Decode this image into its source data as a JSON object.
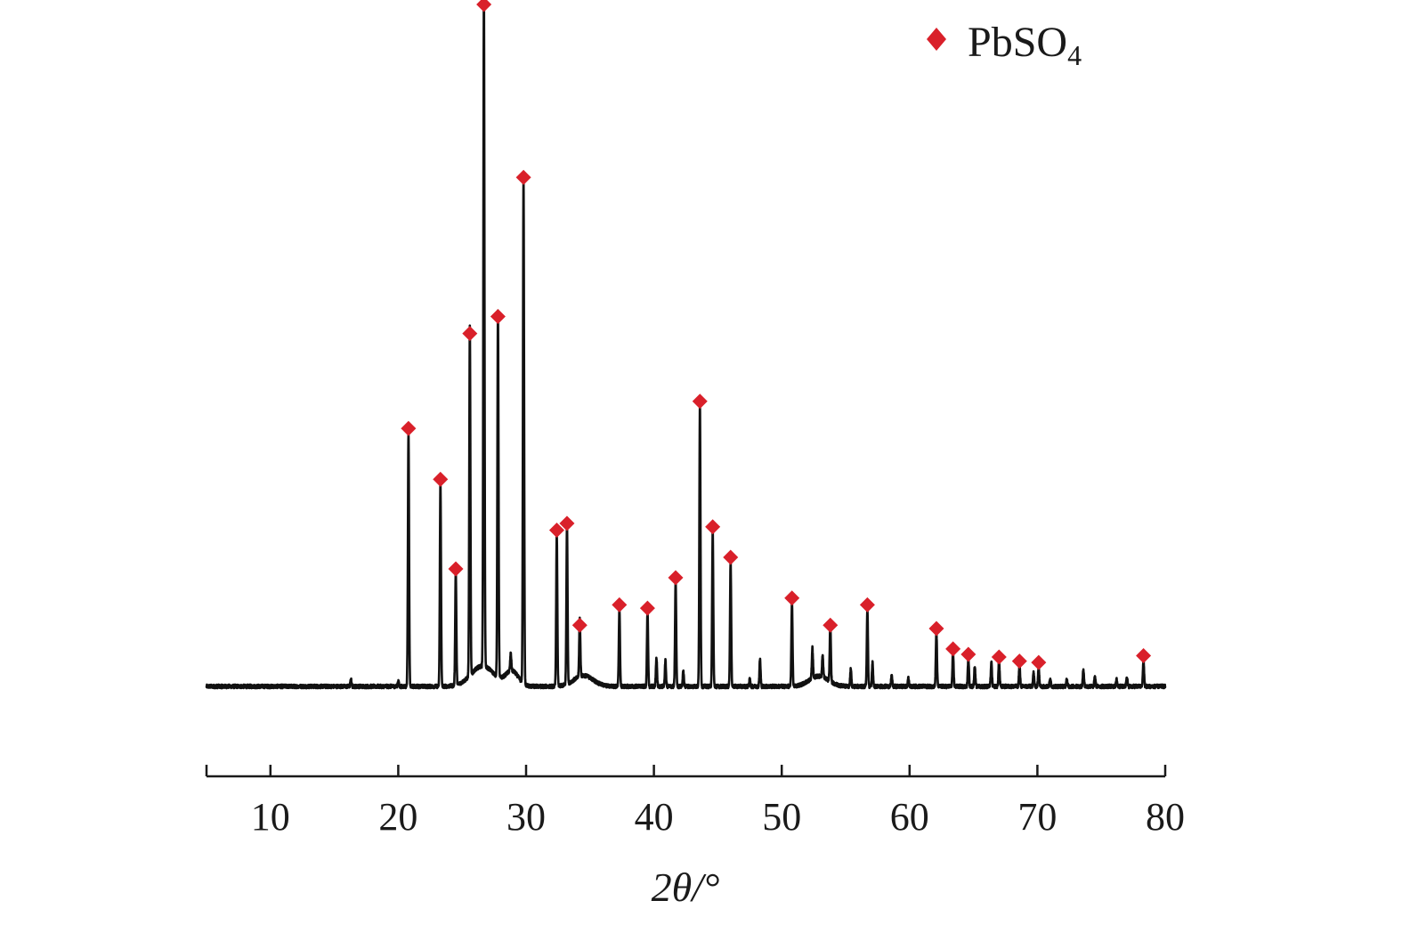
{
  "chart_data": {
    "type": "line",
    "title": "",
    "xlabel": "2θ/°",
    "ylabel": "",
    "xlim": [
      5,
      80
    ],
    "x_ticks": [
      10,
      20,
      30,
      40,
      50,
      60,
      70,
      80
    ],
    "grid": false,
    "legend": {
      "placement": "top-right",
      "entries": [
        {
          "label": "PbSO",
          "subscript": "4",
          "marker": "diamond",
          "color": "#d9202a"
        }
      ]
    },
    "series": [
      {
        "color": "#111111",
        "baseline": 0,
        "peaks": [
          {
            "x": 20.8,
            "y": 37.5,
            "marked": true
          },
          {
            "x": 23.3,
            "y": 30.0,
            "marked": true
          },
          {
            "x": 24.5,
            "y": 16.8,
            "marked": true
          },
          {
            "x": 25.6,
            "y": 51.5,
            "marked": true
          },
          {
            "x": 26.7,
            "y": 100.0,
            "marked": true
          },
          {
            "x": 27.8,
            "y": 54.0,
            "marked": true
          },
          {
            "x": 29.8,
            "y": 74.5,
            "marked": true
          },
          {
            "x": 32.4,
            "y": 22.5,
            "marked": true
          },
          {
            "x": 33.2,
            "y": 23.5,
            "marked": true
          },
          {
            "x": 34.2,
            "y": 8.5,
            "marked": true
          },
          {
            "x": 37.3,
            "y": 11.5,
            "marked": true
          },
          {
            "x": 39.5,
            "y": 11.0,
            "marked": true
          },
          {
            "x": 41.7,
            "y": 15.5,
            "marked": true
          },
          {
            "x": 43.6,
            "y": 41.5,
            "marked": true
          },
          {
            "x": 44.6,
            "y": 23.0,
            "marked": true
          },
          {
            "x": 46.0,
            "y": 18.5,
            "marked": true
          },
          {
            "x": 50.8,
            "y": 12.5,
            "marked": true
          },
          {
            "x": 53.8,
            "y": 8.5,
            "marked": true
          },
          {
            "x": 56.7,
            "y": 11.5,
            "marked": true
          },
          {
            "x": 62.1,
            "y": 8.0,
            "marked": true
          },
          {
            "x": 63.4,
            "y": 5.0,
            "marked": true
          },
          {
            "x": 64.6,
            "y": 4.2,
            "marked": true
          },
          {
            "x": 67.0,
            "y": 3.8,
            "marked": true
          },
          {
            "x": 68.6,
            "y": 3.2,
            "marked": true
          },
          {
            "x": 70.1,
            "y": 3.0,
            "marked": true
          },
          {
            "x": 78.3,
            "y": 4.0,
            "marked": true
          },
          {
            "x": 16.3,
            "y": 1.0,
            "marked": false
          },
          {
            "x": 20.0,
            "y": 0.8,
            "marked": false
          },
          {
            "x": 28.8,
            "y": 2.5,
            "marked": false
          },
          {
            "x": 40.2,
            "y": 4.2,
            "marked": false
          },
          {
            "x": 40.9,
            "y": 3.8,
            "marked": false
          },
          {
            "x": 42.3,
            "y": 2.2,
            "marked": false
          },
          {
            "x": 47.5,
            "y": 1.0,
            "marked": false
          },
          {
            "x": 48.3,
            "y": 4.0,
            "marked": false
          },
          {
            "x": 52.4,
            "y": 4.5,
            "marked": false
          },
          {
            "x": 53.2,
            "y": 3.2,
            "marked": false
          },
          {
            "x": 55.4,
            "y": 2.5,
            "marked": false
          },
          {
            "x": 57.1,
            "y": 3.5,
            "marked": false
          },
          {
            "x": 58.6,
            "y": 1.6,
            "marked": false
          },
          {
            "x": 59.9,
            "y": 1.2,
            "marked": false
          },
          {
            "x": 65.1,
            "y": 3.0,
            "marked": false
          },
          {
            "x": 66.4,
            "y": 3.5,
            "marked": false
          },
          {
            "x": 69.7,
            "y": 2.0,
            "marked": false
          },
          {
            "x": 71.0,
            "y": 1.2,
            "marked": false
          },
          {
            "x": 72.3,
            "y": 1.0,
            "marked": false
          },
          {
            "x": 73.6,
            "y": 2.5,
            "marked": false
          },
          {
            "x": 74.5,
            "y": 1.5,
            "marked": false
          },
          {
            "x": 76.2,
            "y": 1.0,
            "marked": false
          },
          {
            "x": 77.0,
            "y": 1.5,
            "marked": false
          }
        ],
        "humps": [
          {
            "x": 26.6,
            "y": 3.0,
            "width": 1.8
          },
          {
            "x": 28.9,
            "y": 2.2,
            "width": 1.0
          },
          {
            "x": 34.5,
            "y": 1.6,
            "width": 1.5
          },
          {
            "x": 52.9,
            "y": 1.5,
            "width": 1.5
          }
        ]
      }
    ]
  }
}
